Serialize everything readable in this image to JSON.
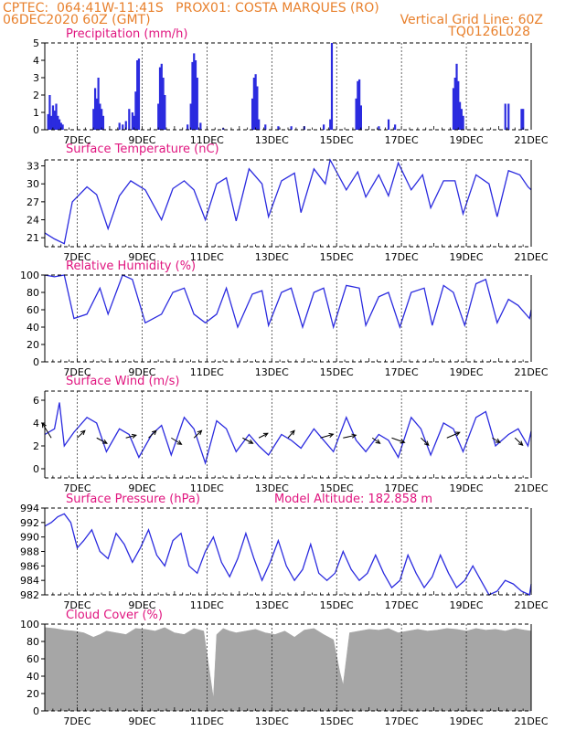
{
  "header": {
    "line1_left": "CPTEC:  064:41W-11:41S   PROX01: COSTA MARQUES (RO)",
    "line2_left": "06DEC2020 60Z (GMT)",
    "line2_right": "Vertical Grid Line: 60Z",
    "line3_right": "TQ0126L028"
  },
  "colors": {
    "header": "#e8802c",
    "title": "#e0157f",
    "series": "#2b2bdf",
    "cloud": "#a6a6a6",
    "wind_arrow": "#000000"
  },
  "x_axis": {
    "start_day": 6,
    "end_day": 21,
    "ticks": [
      {
        "day": 7,
        "label": "7DEC"
      },
      {
        "day": 9,
        "label": "9DEC"
      },
      {
        "day": 11,
        "label": "11DEC"
      },
      {
        "day": 13,
        "label": "13DEC"
      },
      {
        "day": 15,
        "label": "15DEC"
      },
      {
        "day": 17,
        "label": "17DEC"
      },
      {
        "day": 19,
        "label": "19DEC"
      },
      {
        "day": 21,
        "label": "21DEC"
      }
    ]
  },
  "chart_data": [
    {
      "type": "bar",
      "title": "Precipitation (mm/h)",
      "ylim": [
        0,
        5
      ],
      "yticks": [
        0,
        1,
        2,
        3,
        4,
        5
      ],
      "x": [
        6.1,
        6.15,
        6.2,
        6.25,
        6.3,
        6.35,
        6.4,
        6.45,
        6.5,
        6.55,
        7.5,
        7.55,
        7.6,
        7.65,
        7.7,
        7.75,
        7.8,
        8.3,
        8.4,
        8.5,
        8.6,
        8.7,
        8.75,
        8.8,
        8.85,
        8.9,
        9.5,
        9.55,
        9.6,
        9.65,
        9.7,
        10.4,
        10.5,
        10.55,
        10.6,
        10.65,
        10.7,
        10.8,
        11.5,
        12.4,
        12.45,
        12.5,
        12.55,
        12.6,
        12.8,
        13.2,
        13.6,
        14.0,
        14.6,
        14.8,
        14.85,
        15.6,
        15.65,
        15.7,
        15.75,
        16.3,
        16.6,
        16.8,
        18.6,
        18.65,
        18.7,
        18.75,
        18.8,
        18.85,
        18.9,
        20.2,
        20.3,
        20.7,
        20.75
      ],
      "values": [
        0.9,
        2.0,
        0.8,
        1.4,
        1.1,
        1.5,
        0.8,
        0.6,
        0.4,
        0.3,
        1.2,
        2.4,
        1.8,
        3.0,
        1.5,
        1.2,
        0.8,
        0.4,
        0.3,
        0.5,
        1.2,
        1.0,
        0.8,
        2.2,
        4.0,
        4.1,
        1.5,
        3.6,
        3.8,
        3.0,
        2.0,
        0.3,
        1.5,
        3.9,
        4.4,
        4.0,
        3.0,
        0.4,
        0.1,
        1.8,
        3.0,
        3.2,
        2.5,
        0.6,
        0.3,
        0.2,
        0.2,
        0.2,
        0.3,
        0.6,
        5.0,
        1.8,
        2.8,
        2.9,
        1.4,
        0.2,
        0.6,
        0.3,
        2.4,
        3.0,
        3.8,
        2.8,
        1.6,
        1.2,
        0.8,
        1.5,
        1.5,
        1.2,
        1.2
      ]
    },
    {
      "type": "line",
      "title": "Surface Temperature (nC)",
      "ylim": [
        19.5,
        34
      ],
      "yticks": [
        21,
        24,
        27,
        30,
        33
      ],
      "x": [
        6.0,
        6.3,
        6.6,
        6.85,
        7.3,
        7.6,
        7.95,
        8.3,
        8.65,
        9.1,
        9.6,
        9.95,
        10.3,
        10.6,
        10.95,
        11.3,
        11.6,
        11.9,
        12.3,
        12.7,
        12.9,
        13.3,
        13.7,
        13.9,
        14.3,
        14.65,
        14.8,
        15.3,
        15.65,
        15.9,
        16.3,
        16.6,
        16.9,
        17.3,
        17.65,
        17.9,
        18.3,
        18.65,
        18.9,
        19.3,
        19.7,
        19.95,
        20.3,
        20.65,
        20.9,
        21.0
      ],
      "values": [
        21.8,
        20.8,
        20.0,
        27.0,
        29.5,
        28.2,
        22.5,
        28.0,
        30.5,
        29.0,
        24.0,
        29.2,
        30.5,
        29.0,
        24.0,
        30.0,
        31.0,
        23.8,
        32.5,
        30.0,
        24.5,
        30.5,
        31.8,
        25.2,
        32.5,
        30.0,
        34.0,
        29.0,
        32.0,
        27.8,
        31.5,
        28.0,
        33.5,
        29.0,
        31.5,
        26.0,
        30.5,
        30.5,
        25.0,
        31.5,
        30.0,
        24.5,
        32.2,
        31.5,
        29.5,
        29.0
      ]
    },
    {
      "type": "line",
      "title": "Relative Humidity (%)",
      "ylim": [
        0,
        100
      ],
      "yticks": [
        0,
        20,
        40,
        60,
        80,
        100
      ],
      "x": [
        6.0,
        6.3,
        6.6,
        6.9,
        7.3,
        7.7,
        7.95,
        8.4,
        8.7,
        9.1,
        9.6,
        9.95,
        10.3,
        10.6,
        10.95,
        11.3,
        11.6,
        11.95,
        12.4,
        12.7,
        12.9,
        13.3,
        13.6,
        13.95,
        14.3,
        14.6,
        14.9,
        15.3,
        15.7,
        15.9,
        16.3,
        16.6,
        16.95,
        17.3,
        17.7,
        17.95,
        18.3,
        18.6,
        18.95,
        19.3,
        19.6,
        19.95,
        20.3,
        20.6,
        20.95,
        21.0
      ],
      "values": [
        100,
        98,
        100,
        50,
        55,
        85,
        55,
        100,
        95,
        45,
        55,
        80,
        85,
        55,
        45,
        55,
        85,
        40,
        78,
        82,
        42,
        80,
        85,
        40,
        80,
        85,
        40,
        88,
        85,
        42,
        75,
        80,
        40,
        80,
        85,
        42,
        88,
        80,
        42,
        90,
        95,
        45,
        72,
        65,
        50,
        60
      ]
    },
    {
      "type": "line",
      "title": "Surface Wind (m/s)",
      "ylim": [
        -0.8,
        6.8
      ],
      "yticks": [
        0,
        2,
        4,
        6
      ],
      "x": [
        6.0,
        6.3,
        6.45,
        6.6,
        6.9,
        7.3,
        7.6,
        7.9,
        8.3,
        8.6,
        8.9,
        9.3,
        9.6,
        9.9,
        10.3,
        10.6,
        10.95,
        11.3,
        11.6,
        11.9,
        12.3,
        12.6,
        12.9,
        13.3,
        13.6,
        13.9,
        14.3,
        14.6,
        14.9,
        15.3,
        15.6,
        15.9,
        16.3,
        16.6,
        16.9,
        17.3,
        17.6,
        17.9,
        18.3,
        18.6,
        18.9,
        19.3,
        19.6,
        19.9,
        20.3,
        20.6,
        20.9,
        21.0
      ],
      "values": [
        3.0,
        3.5,
        5.8,
        2.0,
        3.2,
        4.5,
        4.0,
        1.5,
        3.5,
        3.0,
        1.0,
        3.0,
        3.8,
        1.2,
        4.5,
        3.5,
        0.5,
        4.2,
        3.5,
        1.5,
        3.0,
        2.0,
        1.2,
        3.0,
        2.5,
        1.8,
        3.5,
        2.5,
        1.5,
        4.5,
        2.5,
        1.5,
        3.0,
        2.5,
        1.0,
        4.5,
        3.5,
        1.2,
        4.0,
        3.5,
        1.5,
        4.5,
        5.0,
        2.0,
        3.0,
        3.5,
        2.0,
        3.3
      ],
      "arrows": [
        {
          "x": 6.2,
          "dx": -0.35,
          "dy": 1.6
        },
        {
          "x": 7.0,
          "dx": 0.3,
          "dy": 0.8
        },
        {
          "x": 7.6,
          "dx": 0.4,
          "dy": -0.6
        },
        {
          "x": 8.5,
          "dx": 0.4,
          "dy": 0.3
        },
        {
          "x": 9.2,
          "dx": 0.3,
          "dy": 0.8
        },
        {
          "x": 9.9,
          "dx": 0.4,
          "dy": -0.7
        },
        {
          "x": 10.6,
          "dx": 0.3,
          "dy": 0.8
        },
        {
          "x": 12.1,
          "dx": 0.4,
          "dy": -0.6
        },
        {
          "x": 12.6,
          "dx": 0.35,
          "dy": 0.5
        },
        {
          "x": 13.5,
          "dx": 0.25,
          "dy": 0.8
        },
        {
          "x": 14.5,
          "dx": 0.5,
          "dy": 0.4
        },
        {
          "x": 15.2,
          "dx": 0.5,
          "dy": 0.3
        },
        {
          "x": 16.1,
          "dx": 0.3,
          "dy": -0.6
        },
        {
          "x": 16.7,
          "dx": 0.5,
          "dy": -0.5
        },
        {
          "x": 17.6,
          "dx": 0.3,
          "dy": -0.8
        },
        {
          "x": 18.4,
          "dx": 0.5,
          "dy": 0.6
        },
        {
          "x": 19.8,
          "dx": 0.3,
          "dy": -0.5
        },
        {
          "x": 20.5,
          "dx": 0.3,
          "dy": -0.8
        }
      ]
    },
    {
      "type": "line",
      "title": "Surface Pressure (hPa)",
      "subtitle": "Model Altitude: 182.858  m",
      "ylim": [
        982,
        994
      ],
      "yticks": [
        982,
        984,
        986,
        988,
        990,
        992,
        994
      ],
      "x": [
        6.0,
        6.2,
        6.4,
        6.6,
        6.8,
        7.0,
        7.2,
        7.45,
        7.7,
        7.95,
        8.2,
        8.45,
        8.7,
        8.95,
        9.2,
        9.45,
        9.7,
        9.95,
        10.2,
        10.45,
        10.7,
        10.95,
        11.2,
        11.45,
        11.7,
        11.95,
        12.2,
        12.45,
        12.7,
        12.95,
        13.2,
        13.45,
        13.7,
        13.95,
        14.2,
        14.45,
        14.7,
        14.95,
        15.2,
        15.45,
        15.7,
        15.95,
        16.2,
        16.45,
        16.7,
        16.95,
        17.2,
        17.45,
        17.7,
        17.95,
        18.2,
        18.45,
        18.7,
        18.95,
        19.2,
        19.45,
        19.7,
        19.95,
        20.2,
        20.45,
        20.7,
        20.95,
        21.0
      ],
      "values": [
        991.5,
        992.0,
        992.8,
        993.2,
        992.0,
        988.5,
        989.5,
        991.0,
        988.0,
        987.0,
        990.5,
        989.0,
        986.5,
        988.5,
        991.0,
        987.5,
        986.0,
        989.5,
        990.5,
        986.0,
        985.0,
        988.0,
        990.0,
        986.5,
        984.5,
        987.0,
        990.5,
        987.0,
        984.0,
        986.5,
        989.5,
        986.0,
        984.0,
        985.5,
        989.0,
        985.0,
        984.0,
        985.0,
        988.0,
        985.5,
        984.0,
        985.0,
        987.5,
        985.0,
        983.0,
        984.0,
        987.5,
        985.0,
        983.0,
        984.5,
        987.5,
        985.0,
        983.0,
        984.0,
        986.0,
        984.0,
        982.0,
        982.5,
        984.0,
        983.5,
        982.5,
        982.0,
        983.5
      ]
    },
    {
      "type": "area",
      "title": "Cloud Cover (%)",
      "ylim": [
        0,
        100
      ],
      "yticks": [
        0,
        20,
        40,
        60,
        80,
        100
      ],
      "x": [
        6.0,
        6.3,
        6.6,
        6.9,
        7.2,
        7.5,
        7.7,
        7.9,
        8.2,
        8.5,
        8.8,
        9.1,
        9.4,
        9.7,
        10.0,
        10.3,
        10.6,
        10.9,
        11.1,
        11.2,
        11.3,
        11.5,
        11.7,
        11.9,
        12.2,
        12.5,
        12.8,
        13.1,
        13.4,
        13.7,
        14.0,
        14.3,
        14.6,
        14.9,
        15.1,
        15.2,
        15.4,
        15.7,
        16.0,
        16.3,
        16.6,
        16.9,
        17.2,
        17.5,
        17.8,
        18.1,
        18.4,
        18.7,
        19.0,
        19.3,
        19.6,
        19.9,
        20.2,
        20.5,
        20.8,
        21.0
      ],
      "values": [
        96,
        95,
        93,
        92,
        90,
        85,
        88,
        92,
        90,
        88,
        95,
        94,
        92,
        96,
        90,
        88,
        95,
        92,
        40,
        15,
        88,
        95,
        92,
        90,
        92,
        94,
        90,
        88,
        92,
        85,
        93,
        95,
        88,
        82,
        45,
        30,
        90,
        92,
        94,
        93,
        95,
        90,
        92,
        94,
        92,
        93,
        95,
        94,
        92,
        95,
        93,
        94,
        92,
        95,
        93,
        92
      ]
    }
  ]
}
